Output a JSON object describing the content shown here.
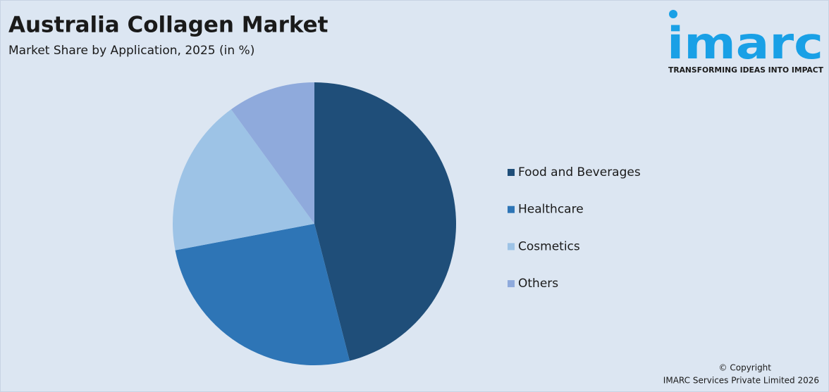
{
  "chart_data": {
    "type": "pie",
    "title": "Australia Collagen Market",
    "subtitle": "Market Share by Application, 2025 (in %)",
    "categories": [
      "Food and Beverages",
      "Healthcare",
      "Cosmetics",
      "Others"
    ],
    "values": [
      46,
      26,
      18,
      10
    ],
    "colors": [
      "#1f4e79",
      "#2e75b6",
      "#9dc3e6",
      "#8faadc"
    ],
    "legend": "right"
  },
  "logo": {
    "name": "imarc",
    "tagline": "TRANSFORMING IDEAS INTO IMPACT"
  },
  "footer": {
    "copyright": "© Copyright",
    "company": "IMARC Services Private Limited 2026"
  }
}
